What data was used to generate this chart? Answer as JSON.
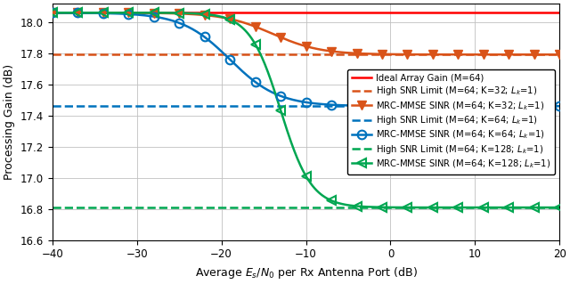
{
  "title": "",
  "xlabel": "Average $E_s/N_0$ per Rx Antenna Port (dB)",
  "ylabel": "Processing Gain (dB)",
  "xlim": [
    -40,
    20
  ],
  "ylim": [
    16.6,
    18.12
  ],
  "yticks": [
    16.6,
    16.8,
    17.0,
    17.2,
    17.4,
    17.6,
    17.8,
    18.0
  ],
  "xticks": [
    -40,
    -30,
    -20,
    -10,
    0,
    10,
    20
  ],
  "ideal_gain": 18.062,
  "limit_K32": 17.793,
  "limit_K64": 17.461,
  "limit_K128": 16.809,
  "colors": {
    "ideal": "#ff0000",
    "K32": "#d95319",
    "K64": "#0072bd",
    "K128": "#00a651"
  },
  "legend": [
    "Ideal Array Gain (M=64)",
    "High SNR Limit (M=64; K=32; $L_k$=1)",
    "MRC-MMSE SINR (M=64; K=32; $L_k$=1)",
    "High SNR Limit (M=64; K=64; $L_k$=1)",
    "MRC-MMSE SINR (M=64; K=64; $L_k$=1)",
    "High SNR Limit (M=64; K=128; $L_k$=1)",
    "MRC-MMSE SINR (M=64; K=128; $L_k$=1)"
  ],
  "transition_K32": {
    "snr0_db": -14,
    "steepness": 0.35
  },
  "transition_K64": {
    "snr0_db": -19,
    "steepness": 0.35
  },
  "transition_K128": {
    "snr0_db": -13,
    "steepness": 0.55
  }
}
